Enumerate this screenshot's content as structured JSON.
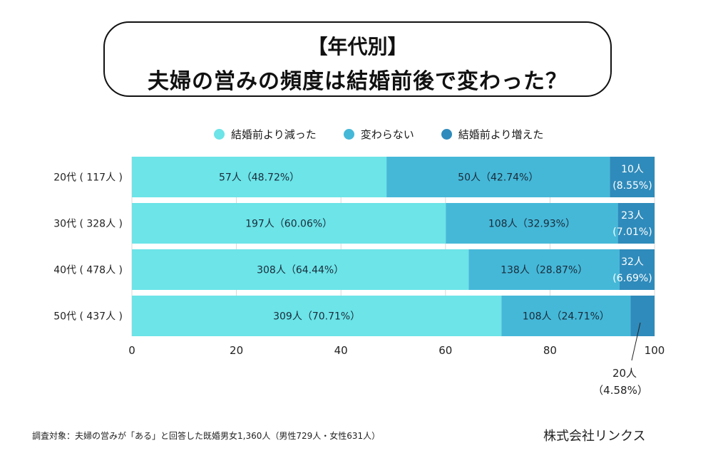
{
  "title": {
    "line1": "【年代別】",
    "line2": "夫婦の営みの頻度は結婚前後で変わった？"
  },
  "chart_data": {
    "type": "bar",
    "orientation": "horizontal-stacked-100",
    "title": "【年代別】夫婦の営みの頻度は結婚前後で変わった？",
    "categories": [
      "20代（117人）",
      "30代（328人）",
      "40代（478人）",
      "50代（437人）"
    ],
    "category_labels": [
      "20代 ( 117人 )",
      "30代 ( 328人 )",
      "40代 ( 478人 )",
      "50代 ( 437人 )"
    ],
    "series": [
      {
        "name": "結婚前より減った",
        "color": "#6ce4e8",
        "counts": [
          57,
          197,
          308,
          309
        ],
        "values": [
          48.72,
          60.06,
          64.44,
          70.71
        ],
        "labels": [
          "57人（48.72%）",
          "197人（60.06%）",
          "308人（64.44%）",
          "309人（70.71%）"
        ]
      },
      {
        "name": "変わらない",
        "color": "#45b8d8",
        "counts": [
          50,
          108,
          138,
          108
        ],
        "values": [
          42.74,
          32.93,
          28.87,
          24.71
        ],
        "labels": [
          "50人（42.74%）",
          "108人（32.93%）",
          "138人（28.87%）",
          "108人（24.71%）"
        ]
      },
      {
        "name": "結婚前より増えた",
        "color": "#2f8bbb",
        "counts": [
          10,
          23,
          32,
          20
        ],
        "values": [
          8.55,
          7.01,
          6.69,
          4.58
        ],
        "labels": [
          [
            "10人",
            "(8.55%)"
          ],
          [
            "23人",
            "(7.01%)"
          ],
          [
            "32人",
            "(6.69%)"
          ],
          [
            "20人",
            "（4.58%）"
          ]
        ]
      }
    ],
    "xlim": [
      0,
      100
    ],
    "xticks": [
      0,
      20,
      40,
      60,
      80,
      100
    ],
    "xlabel": "",
    "ylabel": "",
    "grid": true,
    "legend_position": "top"
  },
  "footnote": "調査対象：夫婦の営みが「ある」と回答した既婚男女1,360人（男性729人・女性631人）",
  "company": "株式会社リンクス"
}
